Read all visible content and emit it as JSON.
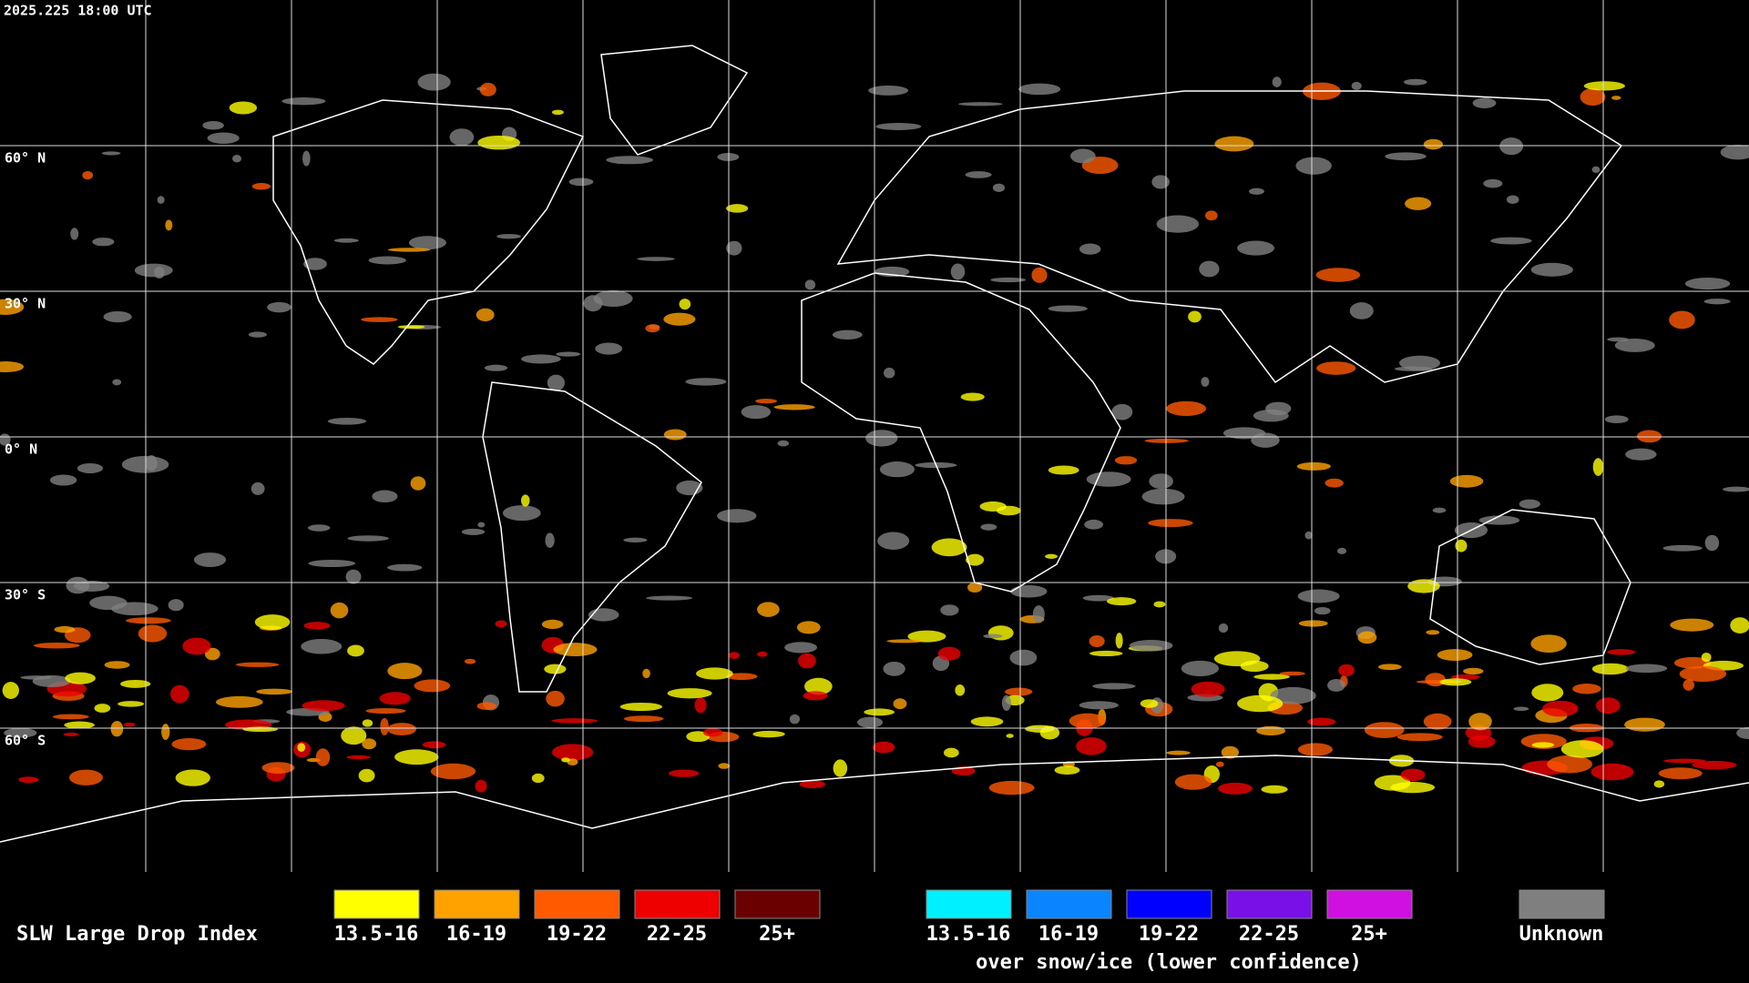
{
  "header": {
    "timestamp": "2025.225 18:00 UTC"
  },
  "map": {
    "latitude_labels": [
      "60° N",
      "30° N",
      "0° N",
      "30° S",
      "60° S"
    ]
  },
  "legend": {
    "title": "SLW Large Drop Index",
    "groups": [
      {
        "items": [
          {
            "label": "13.5-16",
            "color": "#ffff00"
          },
          {
            "label": "16-19",
            "color": "#ffa200"
          },
          {
            "label": "19-22",
            "color": "#ff5a00"
          },
          {
            "label": "22-25",
            "color": "#ee0000"
          },
          {
            "label": "25+",
            "color": "#6a0000"
          }
        ]
      },
      {
        "items": [
          {
            "label": "13.5-16",
            "color": "#00f0ff"
          },
          {
            "label": "16-19",
            "color": "#0a84ff"
          },
          {
            "label": "19-22",
            "color": "#0000ff"
          },
          {
            "label": "22-25",
            "color": "#7a10e8"
          },
          {
            "label": "25+",
            "color": "#d010e0"
          }
        ]
      }
    ],
    "snow_ice_note": "over snow/ice (lower confidence)",
    "unknown": {
      "label": "Unknown",
      "color": "#7f7f7f"
    }
  }
}
